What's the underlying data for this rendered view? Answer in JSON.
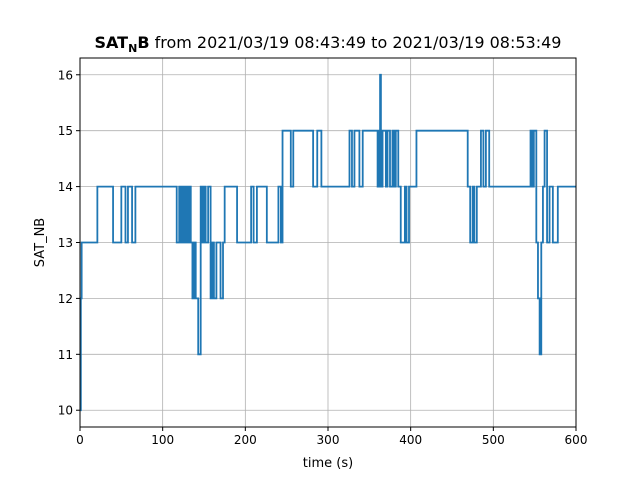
{
  "chart_data": {
    "type": "line",
    "title": {
      "prefix": "SAT",
      "subscript": "N",
      "suffix": "B",
      "rest": " from 2021/03/19 08:43:49 to 2021/03/19 08:53:49"
    },
    "xlabel": "time (s)",
    "ylabel": "SAT_NB",
    "xlim": [
      0,
      600
    ],
    "ylim": [
      9.7,
      16.3
    ],
    "xticks": [
      0,
      100,
      200,
      300,
      400,
      500,
      600
    ],
    "yticks": [
      10,
      11,
      12,
      13,
      14,
      15,
      16
    ],
    "grid": true,
    "series_color": "#1f77b4",
    "series": [
      {
        "step": "post",
        "points": [
          [
            0,
            10
          ],
          [
            1,
            12
          ],
          [
            2,
            13
          ],
          [
            21,
            14
          ],
          [
            40,
            13
          ],
          [
            50,
            14
          ],
          [
            55,
            13
          ],
          [
            58,
            14
          ],
          [
            63,
            13
          ],
          [
            67,
            14
          ],
          [
            117,
            13
          ],
          [
            120,
            14
          ],
          [
            122,
            13
          ],
          [
            124,
            14
          ],
          [
            126,
            13
          ],
          [
            128,
            14
          ],
          [
            130,
            13
          ],
          [
            132,
            14
          ],
          [
            134,
            13
          ],
          [
            136,
            12
          ],
          [
            138,
            13
          ],
          [
            140,
            12
          ],
          [
            143,
            11
          ],
          [
            146,
            14
          ],
          [
            148,
            13
          ],
          [
            150,
            14
          ],
          [
            152,
            13
          ],
          [
            155,
            14
          ],
          [
            158,
            12
          ],
          [
            160,
            13
          ],
          [
            162,
            12
          ],
          [
            165,
            13
          ],
          [
            170,
            12
          ],
          [
            173,
            13
          ],
          [
            175,
            14
          ],
          [
            190,
            13
          ],
          [
            207,
            14
          ],
          [
            210,
            13
          ],
          [
            214,
            14
          ],
          [
            226,
            13
          ],
          [
            240,
            14
          ],
          [
            243,
            13
          ],
          [
            245,
            15
          ],
          [
            255,
            14
          ],
          [
            258,
            15
          ],
          [
            282,
            14
          ],
          [
            287,
            15
          ],
          [
            292,
            14
          ],
          [
            326,
            15
          ],
          [
            329,
            14
          ],
          [
            332,
            15
          ],
          [
            338,
            14
          ],
          [
            342,
            15
          ],
          [
            360,
            14
          ],
          [
            362,
            15
          ],
          [
            363,
            16
          ],
          [
            364,
            14
          ],
          [
            366,
            15
          ],
          [
            370,
            14
          ],
          [
            372,
            15
          ],
          [
            375,
            14
          ],
          [
            378,
            15
          ],
          [
            380,
            14
          ],
          [
            382,
            15
          ],
          [
            385,
            14
          ],
          [
            388,
            13
          ],
          [
            393,
            14
          ],
          [
            395,
            13
          ],
          [
            398,
            14
          ],
          [
            407,
            15
          ],
          [
            469,
            14
          ],
          [
            472,
            13
          ],
          [
            475,
            14
          ],
          [
            477,
            13
          ],
          [
            480,
            14
          ],
          [
            485,
            15
          ],
          [
            488,
            14
          ],
          [
            491,
            15
          ],
          [
            495,
            14
          ],
          [
            545,
            15
          ],
          [
            547,
            14
          ],
          [
            549,
            15
          ],
          [
            552,
            13
          ],
          [
            554,
            12
          ],
          [
            556,
            11
          ],
          [
            558,
            13
          ],
          [
            560,
            14
          ],
          [
            562,
            15
          ],
          [
            565,
            13
          ],
          [
            568,
            14
          ],
          [
            572,
            13
          ],
          [
            578,
            14
          ],
          [
            600,
            14
          ]
        ]
      }
    ]
  }
}
